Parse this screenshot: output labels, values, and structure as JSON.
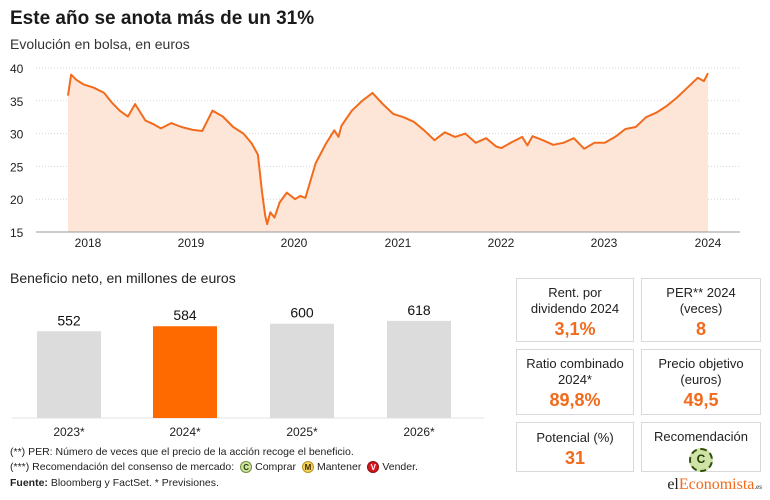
{
  "header": {
    "title": "Este año se anota más de un 31%",
    "subtitle": "Evolución en bolsa, en euros"
  },
  "bar_section": {
    "title": "Beneficio neto, en millones de euros"
  },
  "chart_data": [
    {
      "type": "area",
      "title": "Evolución en bolsa, en euros",
      "x_ticks": [
        "2018",
        "2019",
        "2020",
        "2021",
        "2022",
        "2023",
        "2024"
      ],
      "y_ticks": [
        15,
        20,
        25,
        30,
        35,
        40
      ],
      "ylim": [
        15,
        40
      ],
      "xlim": [
        2017.8,
        2024.0
      ],
      "grid": "horizontal",
      "colors": {
        "line": "#f26b1d",
        "fill": "#fde6d8"
      },
      "series": [
        {
          "x": [
            2017.8,
            2017.83,
            2017.88,
            2017.95,
            2018.05,
            2018.15,
            2018.22,
            2018.3,
            2018.38,
            2018.45,
            2018.55,
            2018.62,
            2018.7,
            2018.8,
            2018.9,
            2019.0,
            2019.1,
            2019.2,
            2019.3,
            2019.4,
            2019.5,
            2019.58,
            2019.64,
            2019.68,
            2019.71,
            2019.73,
            2019.76,
            2019.8,
            2019.85,
            2019.92,
            2020.0,
            2020.05,
            2020.1,
            2020.2,
            2020.3,
            2020.38,
            2020.42,
            2020.45,
            2020.55,
            2020.65,
            2020.75,
            2020.85,
            2020.95,
            2021.05,
            2021.15,
            2021.25,
            2021.35,
            2021.45,
            2021.55,
            2021.65,
            2021.75,
            2021.85,
            2021.95,
            2022.0,
            2022.1,
            2022.2,
            2022.25,
            2022.3,
            2022.4,
            2022.5,
            2022.6,
            2022.7,
            2022.8,
            2022.9,
            2023.0,
            2023.1,
            2023.2,
            2023.3,
            2023.4,
            2023.5,
            2023.6,
            2023.7,
            2023.8,
            2023.9,
            2023.96,
            2024.0
          ],
          "y": [
            35.8,
            39.0,
            38.2,
            37.5,
            37.0,
            36.2,
            34.8,
            33.5,
            32.6,
            34.5,
            32.0,
            31.5,
            30.8,
            31.6,
            31.0,
            30.6,
            30.4,
            33.5,
            32.6,
            31.0,
            30.0,
            28.5,
            26.8,
            21.0,
            17.5,
            16.2,
            18.0,
            17.2,
            19.5,
            21.0,
            20.0,
            20.5,
            20.2,
            25.5,
            28.5,
            30.5,
            29.5,
            31.2,
            33.5,
            35.0,
            36.2,
            34.5,
            33.0,
            32.5,
            31.8,
            30.5,
            29.0,
            30.2,
            29.5,
            30.0,
            28.6,
            29.3,
            28.0,
            27.8,
            28.7,
            29.5,
            28.2,
            29.6,
            29.0,
            28.3,
            28.6,
            29.3,
            27.7,
            28.6,
            28.6,
            29.5,
            30.7,
            31.0,
            32.5,
            33.2,
            34.2,
            35.5,
            37.0,
            38.5,
            38.0,
            39.2
          ]
        }
      ]
    },
    {
      "type": "bar",
      "title": "Beneficio neto, en millones de euros",
      "categories": [
        "2023*",
        "2024*",
        "2025*",
        "2026*"
      ],
      "values": [
        552,
        584,
        600,
        618
      ],
      "highlight_index": 1,
      "ylim": [
        0,
        700
      ],
      "colors": {
        "bar": "#dcdcdc",
        "highlight": "#ff6a00"
      }
    }
  ],
  "kpis": [
    {
      "label": "Rent. por\ndividendo 2024",
      "value": "3,1%"
    },
    {
      "label": "PER** 2024\n(veces)",
      "value": "8"
    },
    {
      "label": "Ratio combinado\n2024*",
      "value": "89,8%"
    },
    {
      "label": "Precio objetivo\n(euros)",
      "value": "49,5"
    },
    {
      "label": "Potencial (%)",
      "value": "31"
    },
    {
      "label": "Recomendación",
      "badge": "C"
    }
  ],
  "footnotes": {
    "per": "(**) PER: Número de veces que el precio de la acción recoge el beneficio.",
    "reco_prefix": "(***) Recomendación del consenso de mercado:",
    "comprar": "Comprar",
    "mantener": "Mantener",
    "vender": "Vender.",
    "badge_c": "C",
    "badge_m": "M",
    "badge_v": "V",
    "source_label": "Fuente:",
    "source_text": " Bloomberg y FactSet. * Previsiones."
  },
  "logo": {
    "part1": "el",
    "part2": "Economista",
    "part3": ".es"
  }
}
